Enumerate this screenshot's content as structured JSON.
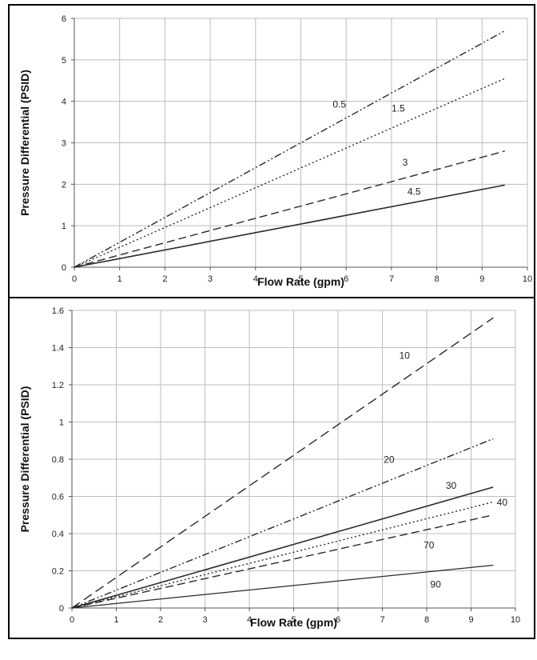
{
  "chart_data": [
    {
      "type": "line",
      "xlabel": "Flow Rate (gpm)",
      "ylabel": "Pressure Differential (PSID)",
      "xlim": [
        0,
        10
      ],
      "ylim": [
        0,
        6
      ],
      "xticks": [
        0,
        1,
        2,
        3,
        4,
        5,
        6,
        7,
        8,
        9,
        10
      ],
      "yticks": [
        0,
        1,
        2,
        3,
        4,
        5,
        6
      ],
      "grid": true,
      "series": [
        {
          "name": "0.5",
          "style": "dash-dot-dot",
          "x": [
            0,
            9.5
          ],
          "y": [
            0,
            5.7
          ],
          "label_at": [
            5.85,
            3.85
          ]
        },
        {
          "name": "1.5",
          "style": "dotted",
          "x": [
            0,
            9.5
          ],
          "y": [
            0,
            4.55
          ],
          "label_at": [
            7.15,
            3.75
          ]
        },
        {
          "name": "3",
          "style": "dashed",
          "x": [
            0,
            9.5
          ],
          "y": [
            0,
            2.8
          ],
          "label_at": [
            7.3,
            2.45
          ]
        },
        {
          "name": "4.5",
          "style": "solid",
          "x": [
            0,
            9.5
          ],
          "y": [
            0,
            1.98
          ],
          "label_at": [
            7.5,
            1.75
          ]
        }
      ]
    },
    {
      "type": "line",
      "xlabel": "Flow Rate (gpm)",
      "ylabel": "Pressure Differential (PSID)",
      "xlim": [
        0,
        10
      ],
      "ylim": [
        0,
        1.6
      ],
      "xticks": [
        0,
        1,
        2,
        3,
        4,
        5,
        6,
        7,
        8,
        9,
        10
      ],
      "yticks": [
        0,
        0.2,
        0.4,
        0.6,
        0.8,
        1,
        1.2,
        1.4,
        1.6
      ],
      "grid": true,
      "series": [
        {
          "name": "10",
          "style": "long-dash",
          "x": [
            0,
            9.5
          ],
          "y": [
            0,
            1.56
          ],
          "label_at": [
            7.5,
            1.34
          ]
        },
        {
          "name": "20",
          "style": "dash-dot-dot",
          "x": [
            0,
            9.5
          ],
          "y": [
            0,
            0.91
          ],
          "label_at": [
            7.15,
            0.78
          ]
        },
        {
          "name": "30",
          "style": "solid",
          "x": [
            0,
            9.5
          ],
          "y": [
            0,
            0.65
          ],
          "label_at": [
            8.55,
            0.64
          ]
        },
        {
          "name": "40",
          "style": "dotted",
          "x": [
            0,
            9.5
          ],
          "y": [
            0,
            0.57
          ],
          "label_at": [
            9.7,
            0.55
          ]
        },
        {
          "name": "70",
          "style": "dashed",
          "x": [
            0,
            9.5
          ],
          "y": [
            0,
            0.5
          ],
          "label_at": [
            8.05,
            0.32
          ]
        },
        {
          "name": "90",
          "style": "solid-fine",
          "x": [
            0,
            9.5
          ],
          "y": [
            0,
            0.23
          ],
          "label_at": [
            8.2,
            0.11
          ]
        }
      ]
    }
  ]
}
